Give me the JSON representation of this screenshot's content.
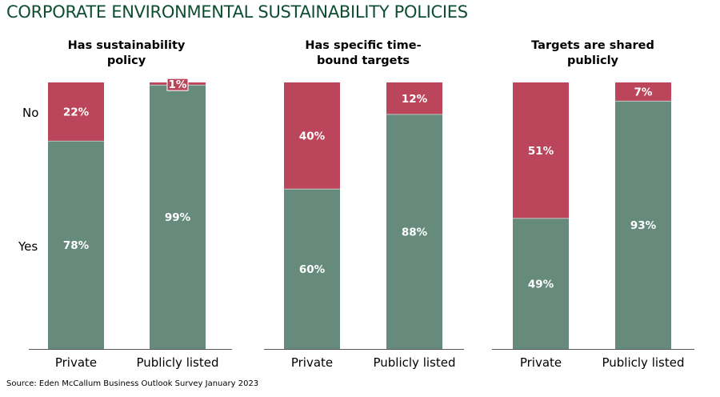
{
  "title": "CORPORATE ENVIRONMENTAL SUSTAINABILITY POLICIES",
  "source": "Source: Eden McCallum Business Outlook Survey January 2023",
  "colors": {
    "title": "#0f4d33",
    "yes": "#668a7c",
    "no": "#bb465c"
  },
  "row_labels": {
    "no": "No",
    "yes": "Yes"
  },
  "chart_data": [
    {
      "type": "bar",
      "stacked": true,
      "title": [
        "Has sustainability",
        "policy"
      ],
      "categories": [
        "Private",
        "Publicly listed"
      ],
      "series": [
        {
          "name": "Yes",
          "values": [
            78,
            99
          ],
          "labels": [
            "78%",
            "99%"
          ]
        },
        {
          "name": "No",
          "values": [
            22,
            1
          ],
          "labels": [
            "22%",
            "1%"
          ]
        }
      ],
      "ylim": [
        0,
        100
      ]
    },
    {
      "type": "bar",
      "stacked": true,
      "title": [
        "Has specific time-",
        "bound targets"
      ],
      "categories": [
        "Private",
        "Publicly listed"
      ],
      "series": [
        {
          "name": "Yes",
          "values": [
            60,
            88
          ],
          "labels": [
            "60%",
            "88%"
          ]
        },
        {
          "name": "No",
          "values": [
            40,
            12
          ],
          "labels": [
            "40%",
            "12%"
          ]
        }
      ],
      "ylim": [
        0,
        100
      ]
    },
    {
      "type": "bar",
      "stacked": true,
      "title": [
        "Targets are shared",
        "publicly"
      ],
      "categories": [
        "Private",
        "Publicly listed"
      ],
      "series": [
        {
          "name": "Yes",
          "values": [
            49,
            93
          ],
          "labels": [
            "49%",
            "93%"
          ]
        },
        {
          "name": "No",
          "values": [
            51,
            7
          ],
          "labels": [
            "51%",
            "7%"
          ]
        }
      ],
      "ylim": [
        0,
        100
      ]
    }
  ]
}
